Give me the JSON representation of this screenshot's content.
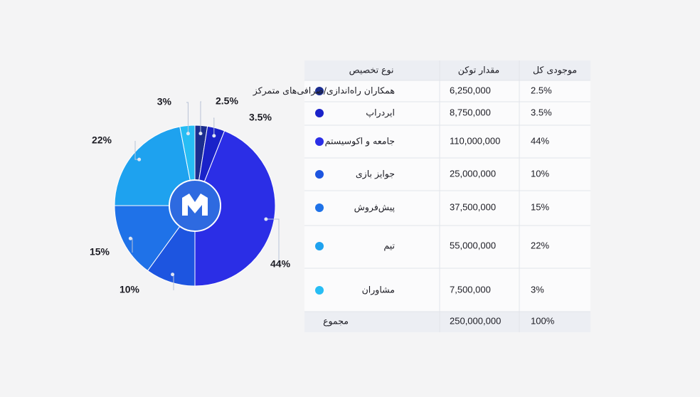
{
  "chart_data": {
    "type": "pie",
    "categories": [
      "همکاران راه‌اندازی/صرافی‌های متمرکز",
      "ایردراپ",
      "جامعه و اکوسیستم",
      "جوایز بازی",
      "پیش‌فروش",
      "تیم",
      "مشاوران"
    ],
    "values": [
      2.5,
      3.5,
      44,
      10,
      15,
      22,
      3
    ],
    "value_labels": [
      "2.5%",
      "3.5%",
      "44%",
      "10%",
      "15%",
      "22%",
      "3%"
    ],
    "colors": [
      "#1b2d8f",
      "#1a22c9",
      "#2b2ee6",
      "#1d55e0",
      "#1f72e8",
      "#1ea2ef",
      "#27bdf4"
    ]
  },
  "table": {
    "columns": [
      "نوع تخصیص",
      "مقدار توکن",
      "موجودی کل"
    ],
    "amounts": [
      "6,250,000",
      "8,750,000",
      "110,000,000",
      "25,000,000",
      "37,500,000",
      "55,000,000",
      "7,500,000"
    ],
    "total": {
      "label": "مجموع",
      "amount": "250,000,000",
      "share": "100%"
    }
  }
}
